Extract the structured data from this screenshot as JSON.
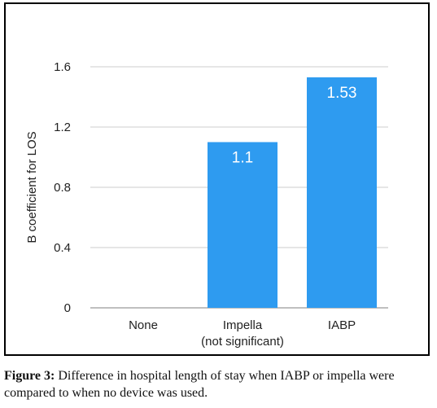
{
  "chart_data": {
    "type": "bar",
    "categories": [
      "None",
      "Impella",
      "IABP"
    ],
    "category_sublabels": [
      "",
      "(not significant)",
      ""
    ],
    "values": [
      0,
      1.1,
      1.53
    ],
    "data_labels": [
      "",
      "1.1",
      "1.53"
    ],
    "title": "",
    "xlabel": "",
    "ylabel": "B coefficient for LOS",
    "ylim": [
      0,
      1.6
    ],
    "yticks": [
      0,
      0.4,
      0.8,
      1.2,
      1.6
    ],
    "ytick_labels": [
      "0",
      "0.4",
      "0.8",
      "1.2",
      "1.6"
    ],
    "grid": "horizontal",
    "bar_color": "#2E9BF0",
    "grid_color": "#cccccc",
    "legend": "none"
  },
  "caption": {
    "label": "Figure 3:",
    "text": " Difference in hospital length of stay when IABP or impella were compared to when no device was used."
  }
}
